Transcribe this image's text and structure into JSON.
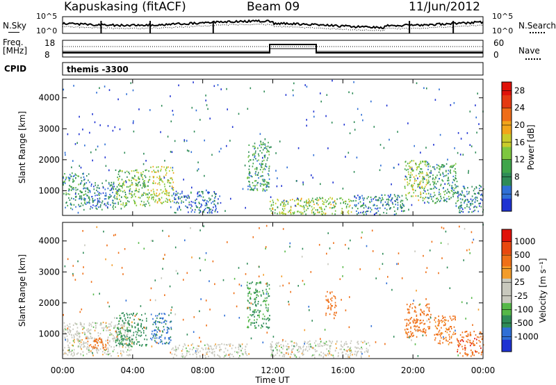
{
  "header": {
    "radar": "Kapuskasing (fitACF)",
    "beam": "Beam 09",
    "date": "11/Jun/2012"
  },
  "panels": {
    "nsky": {
      "label": "N.Sky",
      "ticks": [
        "10^5",
        "10^0"
      ]
    },
    "nsearch": {
      "label": "N.Search",
      "ticks": [
        "10^5",
        "10^0"
      ]
    },
    "freq": {
      "label_line1": "Freq.",
      "label_line2": "[MHz]",
      "ticks": [
        "18",
        "8"
      ]
    },
    "nave": {
      "label": "Nave",
      "ticks": [
        "60",
        "0"
      ]
    },
    "cpid": {
      "label": "CPID",
      "value": "themis -3300"
    }
  },
  "colors": {
    "power": [
      "#1e32d2",
      "#2f6fd6",
      "#2e8b57",
      "#3fa54a",
      "#7ec73f",
      "#c9cc2a",
      "#f2a51a",
      "#ef6d18",
      "#e53a12",
      "#e0120a"
    ],
    "velocity": [
      "#1e32d2",
      "#2f6fd6",
      "#2e8b57",
      "#56b848",
      "#c8c8bd",
      "#c8c8bd",
      "#f39c2a",
      "#ef7018",
      "#e8480f",
      "#e0120a"
    ]
  },
  "chart_data": [
    {
      "type": "heatmap",
      "title": "Power",
      "xlabel": "",
      "ylabel": "Slant Range [km]",
      "x_ticks": [
        "00:00",
        "04:00",
        "08:00",
        "12:00",
        "16:00",
        "20:00",
        "00:00"
      ],
      "y_ticks": [
        "1000",
        "2000",
        "3000",
        "4000"
      ],
      "xlim": [
        0,
        24
      ],
      "ylim": [
        200,
        4600
      ],
      "colorbar": {
        "label": "Power [dB]",
        "ticks": [
          "4",
          "8",
          "12",
          "16",
          "20",
          "24",
          "28"
        ],
        "range": [
          0,
          30
        ]
      },
      "regions": [
        {
          "t0": 0.0,
          "t1": 1.5,
          "r0": 400,
          "r1": 1600,
          "level": 8
        },
        {
          "t0": 1.5,
          "t1": 3.0,
          "r0": 400,
          "r1": 1300,
          "level": 6
        },
        {
          "t0": 3.0,
          "t1": 5.0,
          "r0": 500,
          "r1": 1700,
          "level": 12
        },
        {
          "t0": 5.0,
          "t1": 6.3,
          "r0": 600,
          "r1": 1800,
          "level": 16
        },
        {
          "t0": 6.3,
          "t1": 9.0,
          "r0": 300,
          "r1": 1000,
          "level": 5
        },
        {
          "t0": 10.5,
          "t1": 11.8,
          "r0": 1000,
          "r1": 2600,
          "level": 9
        },
        {
          "t0": 11.8,
          "t1": 16.5,
          "r0": 250,
          "r1": 800,
          "level": 14
        },
        {
          "t0": 16.5,
          "t1": 19.5,
          "r0": 250,
          "r1": 900,
          "level": 6
        },
        {
          "t0": 19.5,
          "t1": 20.8,
          "r0": 700,
          "r1": 2000,
          "level": 14
        },
        {
          "t0": 20.8,
          "t1": 22.5,
          "r0": 600,
          "r1": 1900,
          "level": 9
        },
        {
          "t0": 22.5,
          "t1": 24.0,
          "r0": 300,
          "r1": 1200,
          "level": 6
        }
      ]
    },
    {
      "type": "heatmap",
      "title": "Velocity",
      "xlabel": "Time UT",
      "ylabel": "Slant Range [km]",
      "x_ticks": [
        "00:00",
        "04:00",
        "08:00",
        "12:00",
        "16:00",
        "20:00",
        "00:00"
      ],
      "y_ticks": [
        "1000",
        "2000",
        "3000",
        "4000"
      ],
      "xlim": [
        0,
        24
      ],
      "ylim": [
        200,
        4600
      ],
      "colorbar": {
        "label": "Velocity [m s⁻¹]",
        "ticks": [
          "1000",
          "500",
          "100",
          "25",
          "-25",
          "-100",
          "-500",
          "-1000"
        ],
        "range": [
          -1000,
          1000
        ]
      },
      "regions": [
        {
          "t0": 0.0,
          "t1": 4.0,
          "r0": 300,
          "r1": 1400,
          "level": 0
        },
        {
          "t0": 1.3,
          "t1": 2.6,
          "r0": 500,
          "r1": 900,
          "level": -300
        },
        {
          "t0": 3.0,
          "t1": 4.8,
          "r0": 600,
          "r1": 1700,
          "level": 150
        },
        {
          "t0": 5.0,
          "t1": 6.2,
          "r0": 700,
          "r1": 1700,
          "level": 350
        },
        {
          "t0": 6.2,
          "t1": 10.5,
          "r0": 250,
          "r1": 700,
          "level": 0
        },
        {
          "t0": 10.5,
          "t1": 11.8,
          "r0": 1200,
          "r1": 2700,
          "level": 120
        },
        {
          "t0": 11.8,
          "t1": 17.5,
          "r0": 250,
          "r1": 800,
          "level": 0
        },
        {
          "t0": 15.0,
          "t1": 15.6,
          "r0": 1600,
          "r1": 2400,
          "level": -200
        },
        {
          "t0": 19.5,
          "t1": 21.0,
          "r0": 900,
          "r1": 2000,
          "level": -200
        },
        {
          "t0": 21.2,
          "t1": 22.5,
          "r0": 700,
          "r1": 1600,
          "level": -150
        },
        {
          "t0": 22.5,
          "t1": 24.0,
          "r0": 300,
          "r1": 1100,
          "level": -400
        }
      ]
    }
  ]
}
